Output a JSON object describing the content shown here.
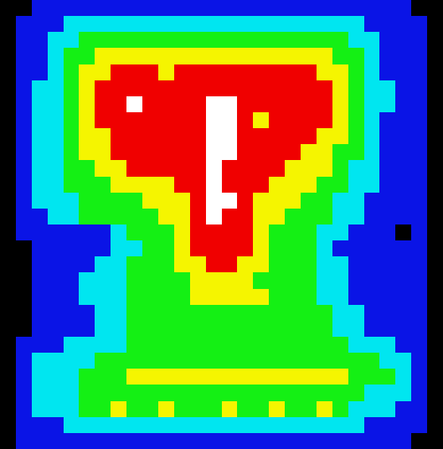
{
  "chart_data": {
    "type": "heatmap",
    "zlim": [
      0,
      6
    ],
    "tick_labels": false,
    "cells": [
      [
        0,
        0,
        1,
        1,
        1,
        1,
        1,
        1,
        1,
        1,
        1,
        1,
        1,
        1,
        1,
        1,
        1,
        1,
        1,
        1,
        1,
        1,
        1,
        1,
        1,
        1,
        0,
        0
      ],
      [
        0,
        1,
        1,
        1,
        2,
        2,
        2,
        2,
        2,
        2,
        2,
        2,
        2,
        2,
        2,
        2,
        2,
        2,
        2,
        2,
        2,
        2,
        2,
        1,
        1,
        1,
        1,
        0
      ],
      [
        0,
        1,
        1,
        2,
        2,
        3,
        3,
        3,
        3,
        3,
        3,
        3,
        3,
        3,
        3,
        3,
        3,
        3,
        3,
        3,
        3,
        3,
        2,
        2,
        1,
        1,
        1,
        0
      ],
      [
        0,
        1,
        1,
        2,
        3,
        3,
        4,
        4,
        4,
        4,
        4,
        4,
        4,
        4,
        4,
        4,
        4,
        4,
        4,
        4,
        4,
        3,
        3,
        2,
        1,
        1,
        1,
        0
      ],
      [
        0,
        1,
        1,
        2,
        3,
        4,
        4,
        5,
        5,
        5,
        4,
        5,
        5,
        5,
        5,
        5,
        5,
        5,
        5,
        5,
        4,
        4,
        3,
        2,
        1,
        1,
        1,
        0
      ],
      [
        0,
        1,
        2,
        2,
        3,
        4,
        5,
        5,
        5,
        5,
        5,
        5,
        5,
        5,
        5,
        5,
        5,
        5,
        5,
        5,
        5,
        4,
        3,
        2,
        2,
        1,
        1,
        0
      ],
      [
        0,
        1,
        2,
        2,
        3,
        4,
        5,
        5,
        6,
        5,
        5,
        5,
        5,
        6,
        6,
        5,
        5,
        5,
        5,
        5,
        5,
        4,
        3,
        2,
        2,
        1,
        1,
        0
      ],
      [
        0,
        1,
        2,
        2,
        3,
        4,
        5,
        5,
        5,
        5,
        5,
        5,
        5,
        6,
        6,
        5,
        4,
        5,
        5,
        5,
        5,
        4,
        3,
        2,
        1,
        1,
        1,
        0
      ],
      [
        0,
        1,
        2,
        2,
        3,
        4,
        4,
        5,
        5,
        5,
        5,
        5,
        5,
        6,
        6,
        5,
        5,
        5,
        5,
        5,
        4,
        4,
        3,
        2,
        1,
        1,
        1,
        0
      ],
      [
        0,
        1,
        2,
        2,
        3,
        4,
        4,
        5,
        5,
        5,
        5,
        5,
        5,
        6,
        6,
        5,
        5,
        5,
        5,
        4,
        4,
        3,
        3,
        2,
        1,
        1,
        1,
        0
      ],
      [
        0,
        1,
        2,
        2,
        3,
        3,
        4,
        4,
        5,
        5,
        5,
        5,
        5,
        6,
        5,
        5,
        5,
        5,
        4,
        4,
        4,
        3,
        2,
        2,
        1,
        1,
        1,
        0
      ],
      [
        0,
        1,
        2,
        2,
        3,
        3,
        3,
        4,
        4,
        4,
        4,
        5,
        5,
        6,
        5,
        5,
        5,
        4,
        4,
        4,
        3,
        3,
        2,
        2,
        1,
        1,
        1,
        0
      ],
      [
        0,
        1,
        2,
        2,
        2,
        3,
        3,
        3,
        3,
        4,
        4,
        4,
        5,
        6,
        6,
        5,
        4,
        4,
        4,
        3,
        3,
        2,
        2,
        1,
        1,
        1,
        1,
        0
      ],
      [
        0,
        1,
        1,
        2,
        2,
        3,
        3,
        3,
        3,
        3,
        4,
        4,
        5,
        6,
        5,
        5,
        4,
        4,
        3,
        3,
        3,
        2,
        2,
        1,
        1,
        1,
        1,
        0
      ],
      [
        0,
        1,
        1,
        1,
        1,
        1,
        1,
        2,
        3,
        3,
        3,
        4,
        5,
        5,
        5,
        5,
        4,
        3,
        3,
        3,
        2,
        2,
        1,
        1,
        1,
        0,
        1,
        0
      ],
      [
        0,
        0,
        1,
        1,
        1,
        1,
        1,
        2,
        2,
        3,
        3,
        4,
        5,
        5,
        5,
        5,
        4,
        3,
        3,
        3,
        2,
        1,
        1,
        1,
        1,
        1,
        1,
        0
      ],
      [
        0,
        0,
        1,
        1,
        1,
        1,
        2,
        2,
        3,
        3,
        3,
        4,
        4,
        5,
        5,
        4,
        4,
        3,
        3,
        3,
        2,
        2,
        1,
        1,
        1,
        1,
        1,
        0
      ],
      [
        0,
        0,
        1,
        1,
        1,
        2,
        2,
        2,
        3,
        3,
        3,
        3,
        4,
        4,
        4,
        4,
        3,
        3,
        3,
        3,
        2,
        2,
        1,
        1,
        1,
        1,
        1,
        0
      ],
      [
        0,
        0,
        1,
        1,
        1,
        2,
        2,
        2,
        3,
        3,
        3,
        3,
        4,
        4,
        4,
        4,
        4,
        3,
        3,
        3,
        2,
        2,
        1,
        1,
        1,
        1,
        1,
        0
      ],
      [
        0,
        0,
        1,
        1,
        1,
        1,
        2,
        2,
        3,
        3,
        3,
        3,
        3,
        3,
        3,
        3,
        3,
        3,
        3,
        3,
        3,
        2,
        2,
        1,
        1,
        1,
        1,
        0
      ],
      [
        0,
        0,
        1,
        1,
        1,
        1,
        2,
        2,
        3,
        3,
        3,
        3,
        3,
        3,
        3,
        3,
        3,
        3,
        3,
        3,
        3,
        2,
        2,
        1,
        1,
        1,
        1,
        0
      ],
      [
        0,
        1,
        1,
        1,
        2,
        2,
        2,
        2,
        3,
        3,
        3,
        3,
        3,
        3,
        3,
        3,
        3,
        3,
        3,
        3,
        3,
        3,
        2,
        2,
        2,
        1,
        1,
        0
      ],
      [
        0,
        1,
        2,
        2,
        2,
        2,
        3,
        3,
        3,
        3,
        3,
        3,
        3,
        3,
        3,
        3,
        3,
        3,
        3,
        3,
        3,
        3,
        3,
        3,
        2,
        2,
        1,
        0
      ],
      [
        0,
        1,
        2,
        2,
        2,
        3,
        3,
        3,
        4,
        4,
        4,
        4,
        4,
        4,
        4,
        4,
        4,
        4,
        4,
        4,
        4,
        4,
        3,
        3,
        3,
        2,
        1,
        0
      ],
      [
        0,
        1,
        2,
        2,
        2,
        3,
        3,
        3,
        3,
        3,
        3,
        3,
        3,
        3,
        3,
        3,
        3,
        3,
        3,
        3,
        3,
        3,
        3,
        2,
        2,
        2,
        1,
        0
      ],
      [
        0,
        1,
        2,
        2,
        2,
        3,
        3,
        4,
        3,
        3,
        4,
        3,
        3,
        3,
        4,
        3,
        3,
        4,
        3,
        3,
        4,
        3,
        2,
        2,
        2,
        1,
        1,
        0
      ],
      [
        0,
        1,
        1,
        1,
        2,
        2,
        2,
        2,
        2,
        2,
        2,
        2,
        2,
        2,
        2,
        2,
        2,
        2,
        2,
        2,
        2,
        2,
        2,
        1,
        1,
        1,
        1,
        0
      ],
      [
        0,
        1,
        1,
        1,
        1,
        1,
        1,
        1,
        1,
        1,
        1,
        1,
        1,
        1,
        1,
        1,
        1,
        1,
        1,
        1,
        1,
        1,
        1,
        1,
        1,
        1,
        0,
        0
      ]
    ]
  }
}
